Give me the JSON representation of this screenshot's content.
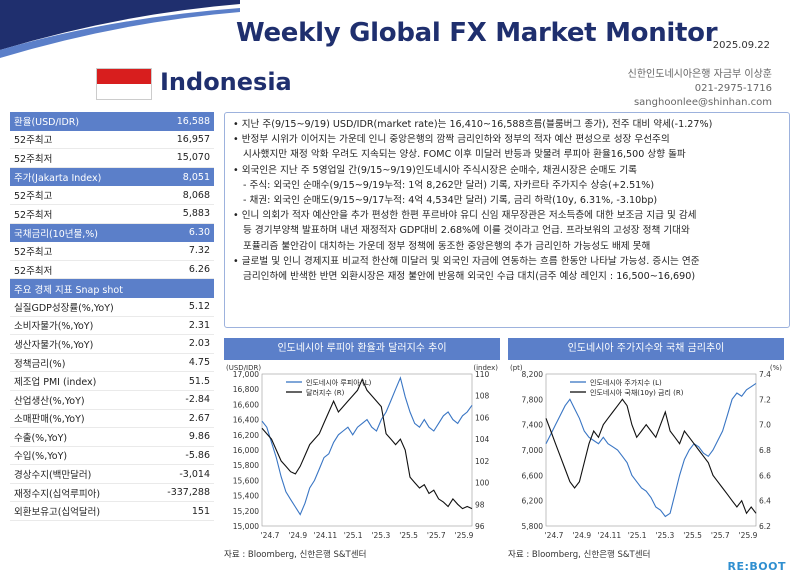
{
  "header": {
    "title": "Weekly Global FX Market Monitor",
    "date": "2025.09.22",
    "country": "Indonesia",
    "contact": [
      "신한인도네시아은행 자금부 이상훈",
      "021-2975-1716",
      "sanghoonlee@shinhan.com"
    ]
  },
  "colors": {
    "accent": "#5b7fc9",
    "title": "#1f2f6e",
    "flag_red": "#d81e1e",
    "series_blue": "#3a76c4"
  },
  "side_table": [
    {
      "label": "환율(USD/IDR)",
      "value": "16,588",
      "header": true
    },
    {
      "label": "52주최고",
      "value": "16,957"
    },
    {
      "label": "52주최저",
      "value": "15,070"
    },
    {
      "label": "주가(Jakarta Index)",
      "value": "8,051",
      "header": true
    },
    {
      "label": "52주최고",
      "value": "8,068"
    },
    {
      "label": "52주최저",
      "value": "5,883"
    },
    {
      "label": "국채금리(10년물,%)",
      "value": "6.30",
      "header": true
    },
    {
      "label": "52주최고",
      "value": "7.32"
    },
    {
      "label": "52주최저",
      "value": "6.26"
    },
    {
      "label": "주요 경제 지표 Snap shot",
      "value": "",
      "header": true
    },
    {
      "label": "실질GDP성장률(%,YoY)",
      "value": "5.12"
    },
    {
      "label": "소비자물가(%,YoY)",
      "value": "2.31"
    },
    {
      "label": "생산자물가(%,YoY)",
      "value": "2.03"
    },
    {
      "label": "정책금리(%)",
      "value": "4.75"
    },
    {
      "label": "제조업 PMI (index)",
      "value": "51.5"
    },
    {
      "label": "산업생산(%,YoY)",
      "value": "-2.84"
    },
    {
      "label": "소매판매(%,YoY)",
      "value": "2.67"
    },
    {
      "label": "수출(%,YoY)",
      "value": "9.86"
    },
    {
      "label": "수입(%,YoY)",
      "value": "-5.86"
    },
    {
      "label": "경상수지(백만달러)",
      "value": "-3,014"
    },
    {
      "label": "재정수지(십억루피아)",
      "value": "-337,288"
    },
    {
      "label": "외환보유고(십억달러)",
      "value": "151"
    }
  ],
  "commentary": [
    {
      "text": "• 지난 주(9/15~9/19) USD/IDR(market rate)는 16,410~16,588흐름(블룸버그 종가), 전주 대비 약세(-1.27%)",
      "sub": false
    },
    {
      "text": "• 반정부 시위가 이어지는 가운데 인니 중앙은행의 깜짝 금리인하와 정부의 적자 예산 편성으로 성장 우선주의",
      "sub": false
    },
    {
      "text": "시사했지만 재정 악화 우려도 지속되는 양상. FOMC 이후 미달러 반등과 맞물려 루피아 환율16,500 상향 돌파",
      "sub": true
    },
    {
      "text": "• 외국인은 지난 주 5영업일 간(9/15~9/19)인도네시아 주식시장은 순매수, 채권시장은 순매도 기록",
      "sub": false
    },
    {
      "text": "- 주식: 외국인 순매수(9/15~9/19누적: 1억 8,262만 달러) 기록, 자카르타 주가지수 상승(+2.51%)",
      "sub": true
    },
    {
      "text": "- 채권: 외국인 순매도(9/15~9/17누적: 4억 4,534만 달러) 기록, 금리 하락(10y, 6.31%, -3.10bp)",
      "sub": true
    },
    {
      "text": "• 인니 의회가 적자 예산안을 추가 편성한 한편 푸르바야 유디 신임 재무장관은 저소득층에 대한 보조금 지급 및 감세",
      "sub": false
    },
    {
      "text": "등 경기부양책 발표하며 내년 재정적자 GDP대비 2.68%에 이를 것이라고 언급. 프라보워의 고성장 정책 기대와",
      "sub": true
    },
    {
      "text": "포퓰리즘 불안감이 대치하는 가운데 정부 정책에 동조한 중앙은행의 추가 금리인하 가능성도 배제 못해",
      "sub": true
    },
    {
      "text": "• 글로벌 및 인니 경제지표 비교적 한산해 미달러 및 외국인 자금에 연동하는 흐름 한동안 나타날 가능성. 증시는 연준",
      "sub": false
    },
    {
      "text": "금리인하에 반색한 반면 외환시장은 재정 불안에 반응해 외국인 수급 대치(금주 예상 레인지 : 16,500~16,690)",
      "sub": true
    }
  ],
  "chart_data": [
    {
      "type": "line",
      "title": "인도네시아 루피아 환율과 달러지수 추이",
      "yunit_left": "(USD/IDR)",
      "yunit_right": "(index)",
      "ylim_left": [
        15000,
        17000
      ],
      "ylim_right": [
        96,
        110
      ],
      "yticks_left": [
        "17,000",
        "16,800",
        "16,600",
        "16,400",
        "16,200",
        "16,000",
        "15,800",
        "15,600",
        "15,400",
        "15,200",
        "15,000"
      ],
      "yticks_right": [
        "110",
        "108",
        "106",
        "104",
        "102",
        "100",
        "98",
        "96"
      ],
      "xticks": [
        "'24.7",
        "'24.9",
        "'24.11",
        "'25.1",
        "'25.3",
        "'25.5",
        "'25.7",
        "'25.9"
      ],
      "series": [
        {
          "name": "인도네시아 루피아 (L)",
          "axis": "left",
          "color": "#3a76c4",
          "values": [
            16380,
            16300,
            16100,
            15900,
            15650,
            15450,
            15350,
            15250,
            15150,
            15300,
            15500,
            15600,
            15750,
            15900,
            15950,
            16100,
            16200,
            16250,
            16300,
            16200,
            16300,
            16350,
            16400,
            16300,
            16250,
            16400,
            16500,
            16650,
            16800,
            16950,
            16700,
            16500,
            16350,
            16300,
            16400,
            16300,
            16250,
            16350,
            16450,
            16500,
            16400,
            16350,
            16450,
            16500,
            16588
          ]
        },
        {
          "name": "달러지수 (R)",
          "axis": "right",
          "color": "#111111",
          "values": [
            105,
            104.5,
            104,
            103,
            102,
            101.5,
            101,
            100.8,
            101.5,
            102.5,
            103.5,
            104,
            104.5,
            105.5,
            106.5,
            107.5,
            106.5,
            107,
            107.5,
            108,
            108.5,
            109.5,
            108.5,
            108,
            107.5,
            107,
            104.5,
            104,
            103.5,
            104,
            103,
            100.5,
            100,
            99.5,
            99.8,
            99,
            99.3,
            98.5,
            98.2,
            97.8,
            98.5,
            98,
            97.6,
            97.8,
            97.6
          ]
        }
      ]
    },
    {
      "type": "line",
      "title": "인도네시아 주가지수와 국채 금리추이",
      "yunit_left": "(pt)",
      "yunit_right": "(%)",
      "ylim_left": [
        5800,
        8200
      ],
      "ylim_right": [
        6.2,
        7.4
      ],
      "yticks_left": [
        "8,200",
        "7,800",
        "7,400",
        "7,000",
        "6,600",
        "6,200",
        "5,800"
      ],
      "yticks_right": [
        "7.4",
        "7.2",
        "7.0",
        "6.8",
        "6.6",
        "6.4",
        "6.2"
      ],
      "xticks": [
        "'24.7",
        "'24.9",
        "'24.11",
        "'25.1",
        "'25.3",
        "'25.5",
        "'25.7",
        "'25.9"
      ],
      "series": [
        {
          "name": "인도네시아 주가지수 (L)",
          "axis": "left",
          "color": "#3a76c4",
          "values": [
            7100,
            7250,
            7400,
            7550,
            7700,
            7800,
            7650,
            7500,
            7300,
            7200,
            7150,
            7100,
            7200,
            7100,
            7050,
            7000,
            6900,
            6800,
            6600,
            6500,
            6400,
            6350,
            6250,
            6100,
            6050,
            5950,
            6000,
            6300,
            6600,
            6850,
            7000,
            7100,
            7050,
            6950,
            6900,
            7000,
            7150,
            7300,
            7550,
            7800,
            7900,
            7850,
            7950,
            8000,
            8051
          ]
        },
        {
          "name": "인도네시아 국채(10y) 금리 (R)",
          "axis": "right",
          "color": "#111111",
          "values": [
            7.05,
            6.95,
            6.85,
            6.75,
            6.65,
            6.55,
            6.5,
            6.55,
            6.7,
            6.85,
            6.95,
            6.9,
            7.0,
            7.05,
            7.1,
            7.15,
            7.2,
            7.15,
            7.0,
            6.9,
            6.95,
            7.0,
            6.95,
            6.9,
            7.0,
            7.1,
            6.95,
            6.9,
            6.85,
            6.95,
            6.9,
            6.85,
            6.8,
            6.75,
            6.7,
            6.6,
            6.55,
            6.5,
            6.45,
            6.4,
            6.35,
            6.4,
            6.3,
            6.35,
            6.3
          ]
        }
      ]
    }
  ],
  "source_left": "자료 : Bloomberg, 신한은행 S&T센터",
  "source_right": "자료 : Bloomberg, 신한은행 S&T센터",
  "footer_logo": "RE:BOOT"
}
